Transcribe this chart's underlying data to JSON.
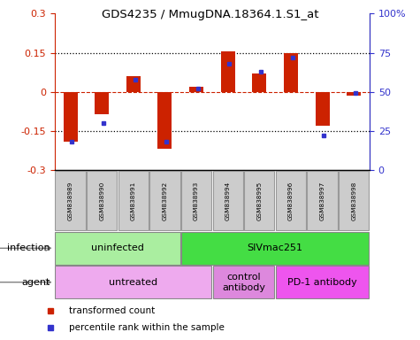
{
  "title": "GDS4235 / MmugDNA.18364.1.S1_at",
  "samples": [
    "GSM838989",
    "GSM838990",
    "GSM838991",
    "GSM838992",
    "GSM838993",
    "GSM838994",
    "GSM838995",
    "GSM838996",
    "GSM838997",
    "GSM838998"
  ],
  "transformed_count": [
    -0.19,
    -0.085,
    0.06,
    -0.22,
    0.02,
    0.155,
    0.07,
    0.148,
    -0.13,
    -0.015
  ],
  "percentile_rank": [
    18,
    30,
    58,
    18,
    52,
    68,
    63,
    72,
    22,
    49
  ],
  "ylim": [
    -0.3,
    0.3
  ],
  "yticks_left": [
    -0.3,
    -0.15,
    0,
    0.15,
    0.3
  ],
  "yticks_right": [
    0,
    25,
    50,
    75,
    100
  ],
  "hlines_dotted": [
    0.15,
    -0.15
  ],
  "bar_color": "#cc2200",
  "dot_color": "#3333cc",
  "bar_width": 0.45,
  "infection_groups": [
    {
      "label": "uninfected",
      "start": 0,
      "end": 3,
      "color": "#aaeea0"
    },
    {
      "label": "SIVmac251",
      "start": 4,
      "end": 9,
      "color": "#44dd44"
    }
  ],
  "agent_groups": [
    {
      "label": "untreated",
      "start": 0,
      "end": 4,
      "color": "#eeaaee"
    },
    {
      "label": "control\nantibody",
      "start": 5,
      "end": 6,
      "color": "#dd88dd"
    },
    {
      "label": "PD-1 antibody",
      "start": 7,
      "end": 9,
      "color": "#ee55ee"
    }
  ],
  "legend_items": [
    {
      "label": "transformed count",
      "color": "#cc2200",
      "marker": "s"
    },
    {
      "label": "percentile rank within the sample",
      "color": "#3333cc",
      "marker": "s"
    }
  ],
  "infection_label": "infection",
  "agent_label": "agent",
  "sample_box_color": "#cccccc",
  "sample_box_edge": "#999999"
}
